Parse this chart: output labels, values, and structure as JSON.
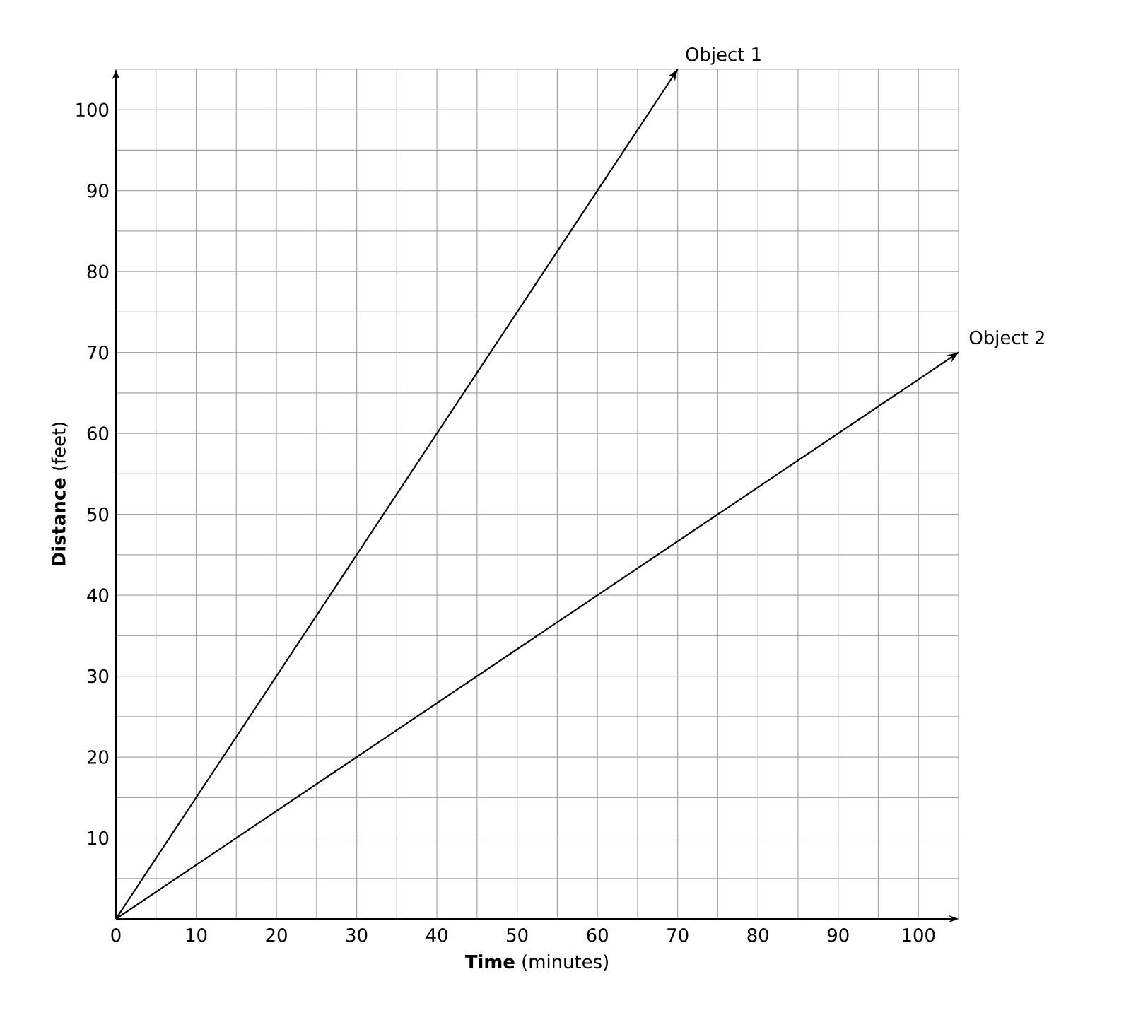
{
  "chart_data": {
    "type": "line",
    "xlabel": "**Time** (minutes)",
    "ylabel": "**Distance** (feet)",
    "series": [
      {
        "name": "Object 1",
        "color": "#000000",
        "x": [
          0,
          70
        ],
        "values": [
          0,
          105
        ]
      },
      {
        "name": "Object 2",
        "color": "#000000",
        "x": [
          0,
          105
        ],
        "values": [
          0,
          70
        ]
      }
    ],
    "xlim": [
      0,
      105
    ],
    "ylim": [
      0,
      105
    ],
    "xticks": [
      0,
      {
        "value": 5,
        "label": null
      },
      10,
      {
        "value": 15,
        "label": null
      },
      20,
      {
        "value": 25,
        "label": null
      },
      30,
      {
        "value": 35,
        "label": null
      },
      40,
      {
        "value": 45,
        "label": null
      },
      50,
      {
        "value": 55,
        "label": null
      },
      60,
      {
        "value": 65,
        "label": null
      },
      70,
      {
        "value": 75,
        "label": null
      },
      80,
      {
        "value": 85,
        "label": null
      },
      90,
      {
        "value": 95,
        "label": null
      },
      100,
      {
        "value": 105,
        "label": null
      }
    ],
    "yticks": [
      {
        "value": 0,
        "label": null
      },
      {
        "value": 5,
        "label": null
      },
      10,
      {
        "value": 15,
        "label": null
      },
      20,
      {
        "value": 25,
        "label": null
      },
      30,
      {
        "value": 35,
        "label": null
      },
      40,
      {
        "value": 45,
        "label": null
      },
      50,
      {
        "value": 55,
        "label": null
      },
      60,
      {
        "value": 65,
        "label": null
      },
      70,
      {
        "value": 75,
        "label": null
      },
      80,
      {
        "value": 85,
        "label": null
      },
      90,
      {
        "value": 95,
        "label": null
      },
      100,
      {
        "value": 105,
        "label": null
      }
    ],
    "grid": true,
    "marker": "none",
    "line_style": "solid"
  }
}
